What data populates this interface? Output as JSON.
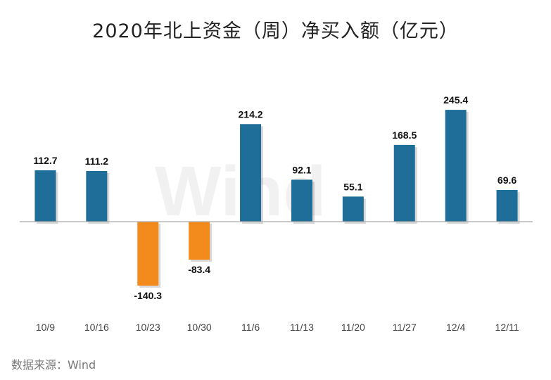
{
  "title": "2020年北上资金（周）净买入额（亿元）",
  "source": "数据来源：Wind",
  "watermark": "Wind",
  "colors": {
    "positive": "#1f6e9a",
    "negative": "#f28a1c",
    "axis": "#aaaaaa"
  },
  "chart_data": {
    "type": "bar",
    "title": "2020年北上资金（周）净买入额（亿元）",
    "xlabel": "",
    "ylabel": "",
    "categories": [
      "10/9",
      "10/16",
      "10/23",
      "10/30",
      "11/6",
      "11/13",
      "11/20",
      "11/27",
      "12/4",
      "12/11"
    ],
    "values": [
      112.7,
      111.2,
      -140.3,
      -83.4,
      214.2,
      92.1,
      55.1,
      168.5,
      245.4,
      69.6
    ],
    "ylim": [
      -170,
      270
    ],
    "grid": false,
    "legend": "none"
  }
}
